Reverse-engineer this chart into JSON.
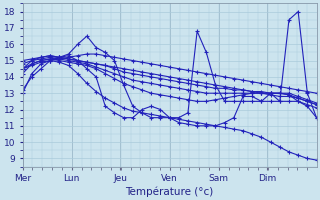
{
  "background_color": "#cce4ee",
  "grid_color": "#aacbdb",
  "line_color": "#2222bb",
  "marker": "+",
  "markersize": 2.5,
  "linewidth": 0.8,
  "title": "Température (°c)",
  "title_fontsize": 7.5,
  "ylim": [
    8.5,
    18.5
  ],
  "yticks": [
    9,
    10,
    11,
    12,
    13,
    14,
    15,
    16,
    17,
    18
  ],
  "ytick_fontsize": 6.5,
  "xtick_fontsize": 6.5,
  "day_labels": [
    "Mer",
    "Lun",
    "Jeu",
    "Ven",
    "Sam",
    "Dim"
  ],
  "day_positions": [
    0,
    0.167,
    0.333,
    0.5,
    0.667,
    0.833
  ],
  "series": [
    [
      13.0,
      14.2,
      14.8,
      15.0,
      14.9,
      14.7,
      14.2,
      13.6,
      13.1,
      12.7,
      12.4,
      12.1,
      11.9,
      11.8,
      11.7,
      11.6,
      11.5,
      11.4,
      11.3,
      11.2,
      11.1,
      11.0,
      10.9,
      10.8,
      10.7,
      10.5,
      10.3,
      10.0,
      9.7,
      9.4,
      9.2,
      9.0,
      8.9
    ],
    [
      14.2,
      14.8,
      15.0,
      15.1,
      15.0,
      14.9,
      14.8,
      14.7,
      14.5,
      14.2,
      13.9,
      13.6,
      13.4,
      13.2,
      13.0,
      12.9,
      12.8,
      12.7,
      12.6,
      12.5,
      12.5,
      12.6,
      12.7,
      12.8,
      12.9,
      13.0,
      13.0,
      13.0,
      13.0,
      12.9,
      12.5,
      12.3,
      12.1
    ],
    [
      14.5,
      15.0,
      15.1,
      15.2,
      15.1,
      15.0,
      14.9,
      14.8,
      14.6,
      14.4,
      14.2,
      14.0,
      13.8,
      13.7,
      13.6,
      13.5,
      13.4,
      13.3,
      13.2,
      13.1,
      13.0,
      13.0,
      13.0,
      13.0,
      13.0,
      13.0,
      13.0,
      12.9,
      12.8,
      12.8,
      12.7,
      12.5,
      12.3
    ],
    [
      14.8,
      15.0,
      15.2,
      15.3,
      15.2,
      15.1,
      15.0,
      14.9,
      14.8,
      14.7,
      14.5,
      14.3,
      14.2,
      14.1,
      14.0,
      13.9,
      13.8,
      13.7,
      13.6,
      13.5,
      13.4,
      13.3,
      13.3,
      13.2,
      13.2,
      13.1,
      13.1,
      13.0,
      13.0,
      13.0,
      12.8,
      12.6,
      12.4
    ],
    [
      15.0,
      15.1,
      15.2,
      15.3,
      15.2,
      15.1,
      15.0,
      14.9,
      14.8,
      14.7,
      14.6,
      14.5,
      14.4,
      14.3,
      14.2,
      14.1,
      14.0,
      13.9,
      13.8,
      13.7,
      13.6,
      13.5,
      13.4,
      13.3,
      13.2,
      13.1,
      13.0,
      13.0,
      13.0,
      12.9,
      12.7,
      12.5,
      12.3
    ],
    [
      14.5,
      14.7,
      14.9,
      15.0,
      15.1,
      15.2,
      15.3,
      15.4,
      15.4,
      15.3,
      15.2,
      15.1,
      15.0,
      14.9,
      14.8,
      14.7,
      14.6,
      14.5,
      14.4,
      14.3,
      14.2,
      14.1,
      14.0,
      13.9,
      13.8,
      13.7,
      13.6,
      13.5,
      13.4,
      13.3,
      13.2,
      13.1,
      13.0
    ],
    [
      13.2,
      14.0,
      14.5,
      15.0,
      15.2,
      15.3,
      15.0,
      14.5,
      14.0,
      12.2,
      11.8,
      11.5,
      11.5,
      12.0,
      12.2,
      12.0,
      11.5,
      11.2,
      11.1,
      11.0,
      11.0,
      11.0,
      11.2,
      11.5,
      12.8,
      12.8,
      12.5,
      12.5,
      12.5,
      12.5,
      12.5,
      12.2,
      11.5
    ],
    [
      14.5,
      14.8,
      15.0,
      15.1,
      15.2,
      15.4,
      16.0,
      16.5,
      15.8,
      15.5,
      15.0,
      13.5,
      12.2,
      11.8,
      11.5,
      11.5,
      11.5,
      11.5,
      11.8,
      16.8,
      15.5,
      13.5,
      12.5,
      12.5,
      12.5,
      12.5,
      12.5,
      13.0,
      12.5,
      17.5,
      18.0,
      13.0,
      11.5
    ]
  ]
}
